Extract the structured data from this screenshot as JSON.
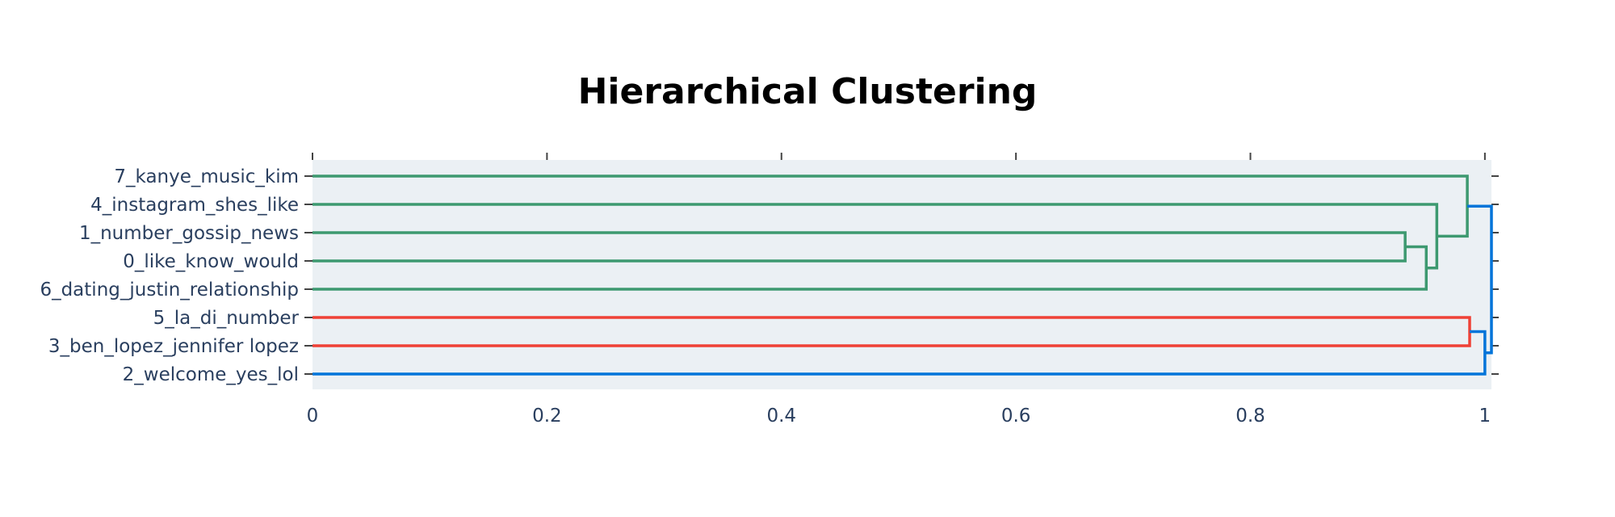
{
  "chart_data": {
    "type": "dendrogram",
    "title": "Hierarchical Clustering",
    "xlabel": "",
    "ylabel": "",
    "xlim": [
      0,
      1.0056
    ],
    "x_ticks": [
      {
        "value": 0,
        "label": "0"
      },
      {
        "value": 0.2,
        "label": "0.2"
      },
      {
        "value": 0.4,
        "label": "0.4"
      },
      {
        "value": 0.6,
        "label": "0.6"
      },
      {
        "value": 0.8,
        "label": "0.8"
      },
      {
        "value": 1,
        "label": "1"
      }
    ],
    "leaves": [
      "7_kanye_music_kim",
      "4_instagram_shes_like",
      "1_number_gossip_news",
      "0_like_know_would",
      "6_dating_justin_relationship",
      "5_la_di_number",
      "3_ben_lopez_jennifer lopez",
      "2_welcome_yes_lol"
    ],
    "colors": {
      "green": "#3d9970",
      "red": "#ef4136",
      "blue": "#0074d9",
      "plot_bg": "#ebf0f4",
      "tick": "#2a3f5f"
    },
    "links": [
      {
        "color": "green",
        "leaf_a": 2,
        "leaf_b": 3,
        "x_a": 0,
        "x_b": 0,
        "height": 0.932
      },
      {
        "color": "green",
        "y_a_mid": [
          2,
          3
        ],
        "leaf_b": 4,
        "x_a": 0.932,
        "x_b": 0,
        "height": 0.95
      },
      {
        "color": "green",
        "leaf_a": 1,
        "y_b_mid": "n2",
        "x_a": 0,
        "x_b": 0.95,
        "height": 0.959
      },
      {
        "color": "green",
        "leaf_a": 0,
        "y_b_mid": "n3",
        "x_a": 0,
        "x_b": 0.959,
        "height": 0.985
      },
      {
        "color": "red",
        "leaf_a": 5,
        "leaf_b": 6,
        "x_a": 0,
        "x_b": 0,
        "height": 0.987
      },
      {
        "color": "blue",
        "y_a_mid": "n5",
        "leaf_b": 7,
        "x_a": 0.987,
        "x_b": 0,
        "height": 1.0
      },
      {
        "color": "blue",
        "y_a_mid": "n4",
        "y_b_mid": "n6",
        "x_a": 0.985,
        "x_b": 1.0,
        "height": 1.0056
      }
    ],
    "merges": [
      {
        "id": "n1",
        "children": [
          "L2",
          "L3"
        ],
        "height": 0.932,
        "color": "green"
      },
      {
        "id": "n2",
        "children": [
          "n1",
          "L4"
        ],
        "height": 0.95,
        "color": "green"
      },
      {
        "id": "n3",
        "children": [
          "L1",
          "n2"
        ],
        "height": 0.959,
        "color": "green"
      },
      {
        "id": "n4",
        "children": [
          "L0",
          "n3"
        ],
        "height": 0.985,
        "color": "green"
      },
      {
        "id": "n5",
        "children": [
          "L5",
          "L6"
        ],
        "height": 0.987,
        "color": "red"
      },
      {
        "id": "n6",
        "children": [
          "n5",
          "L7"
        ],
        "height": 1.0,
        "color": "blue"
      },
      {
        "id": "n7",
        "children": [
          "n4",
          "n6"
        ],
        "height": 1.0056,
        "color": "blue"
      }
    ],
    "grid": false,
    "legend": "none"
  }
}
